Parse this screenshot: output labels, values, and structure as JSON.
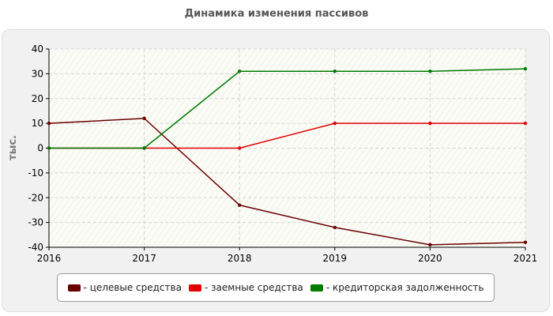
{
  "chart_data": {
    "type": "line",
    "title": "Динамика изменения пассивов",
    "ylabel": "тыс.",
    "xlabel": "",
    "x": [
      "2016",
      "2017",
      "2018",
      "2019",
      "2020",
      "2021"
    ],
    "ylim": [
      -40,
      40
    ],
    "yticks": [
      40,
      30,
      20,
      10,
      0,
      -10,
      -20,
      -30,
      -40
    ],
    "grid": true,
    "legend_position": "bottom",
    "series": [
      {
        "name": "целевые средства",
        "color": "#6b0000",
        "values": [
          10,
          12,
          -23,
          -32,
          -39,
          -38
        ]
      },
      {
        "name": "заемные средства",
        "color": "#e00000",
        "values": [
          0,
          0,
          0,
          10,
          10,
          10
        ]
      },
      {
        "name": "кредиторская задолженность",
        "color": "#007a00",
        "values": [
          0,
          0,
          31,
          31,
          31,
          32
        ]
      }
    ]
  }
}
